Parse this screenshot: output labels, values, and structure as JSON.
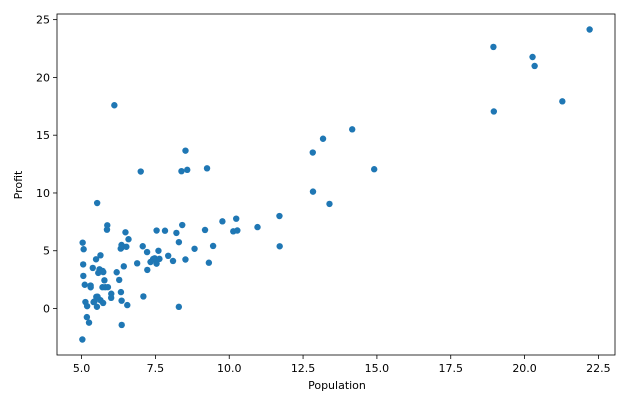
{
  "chart_data": {
    "type": "scatter",
    "x_label": "Population",
    "y_label": "Profit",
    "color": "#1f77b4",
    "x": [
      6.1101,
      5.5277,
      8.5186,
      7.0032,
      5.8598,
      8.3829,
      7.4764,
      8.5781,
      6.4862,
      5.0546,
      5.7107,
      14.164,
      5.734,
      8.4084,
      5.6407,
      5.3794,
      6.3654,
      5.1301,
      6.4296,
      7.0708,
      6.1891,
      20.27,
      5.4901,
      6.3261,
      5.5649,
      18.945,
      12.828,
      10.957,
      13.176,
      22.203,
      5.2524,
      6.5894,
      9.2482,
      5.8918,
      8.2111,
      7.9334,
      8.0959,
      5.6063,
      12.836,
      6.3534,
      5.4069,
      6.8825,
      11.708,
      5.7737,
      7.8247,
      7.0931,
      5.0702,
      5.8014,
      11.7,
      5.5416,
      7.5402,
      5.3077,
      7.4239,
      7.6031,
      6.3328,
      6.3589,
      6.2742,
      5.6397,
      9.3102,
      9.4536,
      8.8254,
      5.1793,
      21.279,
      14.908,
      18.959,
      7.2182,
      8.2951,
      10.236,
      5.4994,
      20.341,
      10.136,
      7.3345,
      6.0062,
      7.2259,
      5.0269,
      6.5479,
      7.5386,
      5.0365,
      10.274,
      5.1077,
      5.7292,
      5.1884,
      6.3557,
      9.7687,
      6.5159,
      8.5172,
      9.1802,
      6.002,
      5.5204,
      5.0594,
      5.7077,
      7.6366,
      5.8707,
      5.3054,
      8.2934,
      13.394,
      5.4369
    ],
    "values": [
      17.592,
      9.1302,
      13.662,
      11.854,
      6.8233,
      11.886,
      4.3483,
      12,
      6.5987,
      3.8166,
      3.2522,
      15.505,
      3.1551,
      7.2258,
      0.71618,
      3.5129,
      5.3048,
      0.56077,
      3.6518,
      5.3893,
      3.1386,
      21.767,
      4.263,
      5.1875,
      3.0825,
      22.638,
      13.501,
      7.0467,
      14.692,
      24.147,
      -1.22,
      5.9966,
      12.134,
      1.8495,
      6.5426,
      4.5623,
      4.1164,
      3.3928,
      10.117,
      5.4974,
      0.55657,
      3.9115,
      5.3854,
      2.4406,
      6.7318,
      1.0463,
      5.1337,
      1.844,
      8.0043,
      1.0179,
      6.7504,
      1.8396,
      4.2885,
      4.9981,
      1.4233,
      -1.4211,
      2.4756,
      4.6042,
      3.9624,
      5.4141,
      5.1694,
      -0.74279,
      17.929,
      12.054,
      17.054,
      4.8852,
      5.7442,
      7.7754,
      1.0173,
      20.992,
      6.6799,
      4.0259,
      1.2784,
      3.3411,
      -2.6807,
      0.29678,
      3.8845,
      5.7014,
      6.7526,
      2.0576,
      0.47953,
      0.20421,
      0.67861,
      7.5435,
      5.3436,
      4.2415,
      6.7981,
      0.92695,
      0.152,
      2.8214,
      1.8451,
      4.2959,
      7.2029,
      1.9869,
      0.14454,
      9.0551,
      0.61705
    ],
    "xlim": [
      4.168,
      23.062
    ],
    "ylim": [
      -4.022,
      25.488
    ],
    "xticks": [
      {
        "value": 5,
        "label": "5.0"
      },
      7.5,
      {
        "value": 10,
        "label": "10.0"
      },
      12.5,
      {
        "value": 15,
        "label": "15.0"
      },
      17.5,
      {
        "value": 20,
        "label": "20.0"
      },
      22.5
    ],
    "yticks": [
      0,
      5,
      10,
      15,
      20,
      25
    ]
  }
}
